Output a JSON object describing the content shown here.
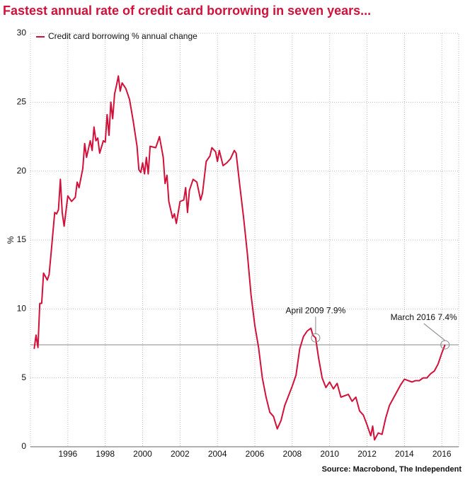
{
  "chart_data": {
    "type": "line",
    "title": "Fastest annual rate of credit card borrowing in seven years...",
    "ylabel": "%",
    "source": "Source: Macrobond, The Independent",
    "x": [
      1994.2,
      1994.3,
      1994.4,
      1994.5,
      1994.6,
      1994.7,
      1994.9,
      1995.0,
      1995.1,
      1995.3,
      1995.4,
      1995.5,
      1995.6,
      1995.7,
      1995.8,
      1996.0,
      1996.2,
      1996.4,
      1996.5,
      1996.6,
      1996.8,
      1996.9,
      1997.0,
      1997.2,
      1997.3,
      1997.4,
      1997.5,
      1997.6,
      1997.7,
      1997.9,
      1998.0,
      1998.1,
      1998.2,
      1998.3,
      1998.4,
      1998.5,
      1998.6,
      1998.7,
      1998.8,
      1998.9,
      1999.1,
      1999.3,
      1999.5,
      1999.7,
      1999.8,
      1999.9,
      2000.0,
      2000.1,
      2000.2,
      2000.3,
      2000.4,
      2000.7,
      2000.8,
      2000.9,
      2001.1,
      2001.2,
      2001.3,
      2001.4,
      2001.6,
      2001.7,
      2001.8,
      2002.0,
      2002.2,
      2002.3,
      2002.4,
      2002.5,
      2002.7,
      2002.9,
      2003.1,
      2003.2,
      2003.4,
      2003.6,
      2003.7,
      2003.9,
      2004.0,
      2004.1,
      2004.3,
      2004.5,
      2004.7,
      2004.9,
      2005.0,
      2005.2,
      2005.4,
      2005.6,
      2005.8,
      2006.0,
      2006.2,
      2006.4,
      2006.6,
      2006.8,
      2007.0,
      2007.2,
      2007.4,
      2007.6,
      2007.8,
      2008.0,
      2008.2,
      2008.4,
      2008.6,
      2008.8,
      2009.0,
      2009.1,
      2009.25,
      2009.4,
      2009.6,
      2009.8,
      2010.0,
      2010.2,
      2010.4,
      2010.6,
      2010.8,
      2011.0,
      2011.2,
      2011.4,
      2011.6,
      2011.8,
      2012.0,
      2012.2,
      2012.3,
      2012.4,
      2012.6,
      2012.8,
      2013.0,
      2013.2,
      2013.4,
      2013.6,
      2013.8,
      2014.0,
      2014.2,
      2014.4,
      2014.6,
      2014.8,
      2015.0,
      2015.2,
      2015.4,
      2015.6,
      2015.8,
      2016.0,
      2016.17
    ],
    "series": [
      {
        "name": "Credit card borrowing % annual change",
        "color": "#d2113a",
        "values": [
          7.1,
          8.1,
          7.2,
          10.4,
          10.4,
          12.6,
          12.1,
          12.5,
          14.0,
          17.0,
          16.9,
          17.2,
          19.4,
          17.0,
          16.0,
          18.2,
          17.8,
          18.1,
          19.2,
          18.8,
          20.2,
          22.0,
          21.0,
          22.2,
          21.5,
          23.2,
          22.2,
          22.4,
          21.3,
          22.2,
          22.1,
          24.1,
          22.6,
          25.0,
          23.8,
          25.6,
          26.2,
          26.9,
          25.8,
          26.4,
          26.0,
          25.2,
          23.6,
          21.8,
          20.1,
          19.9,
          20.6,
          19.8,
          21.0,
          19.8,
          21.8,
          21.7,
          22.1,
          22.5,
          21.0,
          19.1,
          19.7,
          17.8,
          16.6,
          16.9,
          16.2,
          17.8,
          17.9,
          18.8,
          17.0,
          18.6,
          19.4,
          19.2,
          17.9,
          18.4,
          20.7,
          21.1,
          21.7,
          21.4,
          20.7,
          21.5,
          20.4,
          20.6,
          20.9,
          21.5,
          21.3,
          18.9,
          16.6,
          14.0,
          11.0,
          8.8,
          7.2,
          5.0,
          3.6,
          2.5,
          2.2,
          1.3,
          1.9,
          3.0,
          3.7,
          4.4,
          5.2,
          7.1,
          8.0,
          8.4,
          8.6,
          8.1,
          7.9,
          6.5,
          5.0,
          4.3,
          4.7,
          4.2,
          4.6,
          3.6,
          3.7,
          3.8,
          3.3,
          3.6,
          2.6,
          2.3,
          1.6,
          0.8,
          1.5,
          0.5,
          1.0,
          0.9,
          2.1,
          3.0,
          3.5,
          4.0,
          4.5,
          4.9,
          4.8,
          4.7,
          4.8,
          4.8,
          5.0,
          5.0,
          5.3,
          5.5,
          6.0,
          6.8,
          7.4
        ]
      }
    ],
    "annotations": [
      {
        "text": "April 2009 7.9%",
        "x": 2009.25,
        "y": 7.9
      },
      {
        "text": "March 2016 7.4%",
        "x": 2016.17,
        "y": 7.4
      }
    ],
    "reference_line": 7.4,
    "xlim": [
      1994,
      2016.9
    ],
    "ylim": [
      0,
      30
    ],
    "xticks": [
      1996,
      1998,
      2000,
      2002,
      2004,
      2006,
      2008,
      2010,
      2012,
      2014,
      2016
    ],
    "yticks": [
      0,
      5,
      10,
      15,
      20,
      25,
      30
    ],
    "grid": true,
    "legend": "upper left"
  }
}
